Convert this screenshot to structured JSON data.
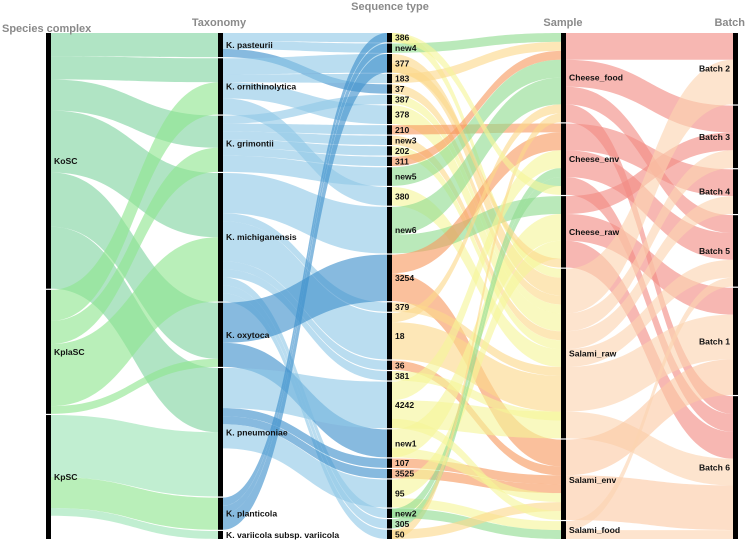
{
  "chart_data": {
    "type": "alluvial",
    "axes": [
      "Species complex",
      "Taxonomy",
      "Sequence type",
      "Sample",
      "Batch"
    ],
    "nodes": [
      [
        {
          "label": "KoSC",
          "value": 33,
          "color": "#7fd3a0"
        },
        {
          "label": "KplaSC",
          "value": 16,
          "color": "#a8eeaa"
        },
        {
          "label": "KpSC",
          "value": 16,
          "color": "#9be3b5"
        }
      ],
      [
        {
          "label": "K. pasteurii",
          "value": 3,
          "color": "#8fc8e6"
        },
        {
          "label": "K. ornithinolytica",
          "value": 7,
          "color": "#a9f5a0"
        },
        {
          "label": "K. grimontii",
          "value": 7,
          "color": "#8fc8e6"
        },
        {
          "label": "K. michiganensis",
          "value": 16,
          "color": "#8fc8e6"
        },
        {
          "label": "K. oxytoca",
          "value": 8,
          "color": "#3d8fcc"
        },
        {
          "label": "K. pneumoniae",
          "value": 16,
          "color": "#8fc8e6"
        },
        {
          "label": "K. planticola",
          "value": 4,
          "color": "#3d8fcc"
        },
        {
          "label": "K. variicola subsp. variicola",
          "value": 1,
          "color": "#8fc8e6"
        }
      ],
      [
        {
          "label": "386",
          "value": 1,
          "color": "#f5f59a"
        },
        {
          "label": "new4",
          "value": 1,
          "color": "#8fdc8f"
        },
        {
          "label": "377",
          "value": 2,
          "color": "#fbd98a"
        },
        {
          "label": "183",
          "value": 1,
          "color": "#fbd98a"
        },
        {
          "label": "37",
          "value": 1,
          "color": "#fbd98a"
        },
        {
          "label": "387",
          "value": 1,
          "color": "#f5f59a"
        },
        {
          "label": "378",
          "value": 2,
          "color": "#f5f59a"
        },
        {
          "label": "210",
          "value": 1,
          "color": "#fbd98a"
        },
        {
          "label": "new3",
          "value": 1,
          "color": "#fbd98a"
        },
        {
          "label": "202",
          "value": 1,
          "color": "#f5f59a"
        },
        {
          "label": "311",
          "value": 1,
          "color": "#fbd98a"
        },
        {
          "label": "new5",
          "value": 2,
          "color": "#8fdc8f"
        },
        {
          "label": "380",
          "value": 2,
          "color": "#f5f59a"
        },
        {
          "label": "new6",
          "value": 5,
          "color": "#8fdc8f"
        },
        {
          "label": "3254",
          "value": 5,
          "color": "#f79a60"
        },
        {
          "label": "379",
          "value": 1,
          "color": "#fbd98a"
        },
        {
          "label": "18",
          "value": 5,
          "color": "#fbd98a"
        },
        {
          "label": "36",
          "value": 1,
          "color": "#f79a60"
        },
        {
          "label": "381",
          "value": 1,
          "color": "#f5f59a"
        },
        {
          "label": "4242",
          "value": 5,
          "color": "#f5f59a"
        },
        {
          "label": "new1",
          "value": 3,
          "color": "#f5f59a"
        },
        {
          "label": "107",
          "value": 1,
          "color": "#f79a60"
        },
        {
          "label": "3525",
          "value": 1,
          "color": "#f79a60"
        },
        {
          "label": "95",
          "value": 3,
          "color": "#f5f59a"
        },
        {
          "label": "new2",
          "value": 1,
          "color": "#8fdc8f"
        },
        {
          "label": "305",
          "value": 1,
          "color": "#8fdc8f"
        },
        {
          "label": "50",
          "value": 1,
          "color": "#fbd98a"
        }
      ],
      [
        {
          "label": "Cheese_food",
          "value": 10,
          "color": "#8fdc8f"
        },
        {
          "label": "Cheese_env",
          "value": 8,
          "color": "#8fdc8f"
        },
        {
          "label": "Cheese_raw",
          "value": 8,
          "color": "#8fdc8f"
        },
        {
          "label": "Salami_raw",
          "value": 19,
          "color": "#f5f59a"
        },
        {
          "label": "Salami_env",
          "value": 9,
          "color": "#f79a60"
        },
        {
          "label": "Salami_food",
          "value": 2,
          "color": "#f5f59a"
        }
      ],
      [
        {
          "label": "Batch 2",
          "value": 8,
          "color": "#f28b82"
        },
        {
          "label": "Batch 3",
          "value": 7,
          "color": "#f28b82"
        },
        {
          "label": "Batch 4",
          "value": 5,
          "color": "#f28b82"
        },
        {
          "label": "Batch 5",
          "value": 8,
          "color": "#f28b82"
        },
        {
          "label": "Batch 1",
          "value": 12,
          "color": "#f28b82"
        },
        {
          "label": "Batch 6",
          "value": 16,
          "color": "#f28b82"
        }
      ]
    ],
    "flows": [
      [
        [
          0,
          0,
          3,
          "#7fd3a0"
        ],
        [
          0,
          1,
          3,
          "#7fd3a0"
        ],
        [
          0,
          2,
          4,
          "#7fd3a0"
        ],
        [
          0,
          3,
          8,
          "#7fd3a0"
        ],
        [
          0,
          4,
          7,
          "#7fd3a0"
        ],
        [
          0,
          5,
          8,
          "#7fd3a0"
        ],
        [
          1,
          1,
          4,
          "#8ee58e"
        ],
        [
          1,
          2,
          3,
          "#8ee58e"
        ],
        [
          1,
          3,
          8,
          "#8ee58e"
        ],
        [
          1,
          4,
          1,
          "#8ee58e"
        ],
        [
          2,
          5,
          8,
          "#9be3b5"
        ],
        [
          2,
          6,
          4,
          "#8ee58e"
        ],
        [
          2,
          7,
          1,
          "#9be3b5"
        ]
      ],
      [
        [
          0,
          0,
          1,
          "#8fc8e6"
        ],
        [
          0,
          1,
          1,
          "#8fc8e6"
        ],
        [
          0,
          4,
          1,
          "#3d8fcc"
        ],
        [
          1,
          2,
          2,
          "#8fc8e6"
        ],
        [
          1,
          3,
          1,
          "#8fc8e6"
        ],
        [
          1,
          6,
          2,
          "#8fc8e6"
        ],
        [
          1,
          12,
          2,
          "#8fc8e6"
        ],
        [
          2,
          5,
          1,
          "#8fc8e6"
        ],
        [
          2,
          7,
          1,
          "#8fc8e6"
        ],
        [
          2,
          8,
          1,
          "#8fc8e6"
        ],
        [
          2,
          9,
          1,
          "#8fc8e6"
        ],
        [
          2,
          10,
          1,
          "#8fc8e6"
        ],
        [
          2,
          11,
          2,
          "#8fc8e6"
        ],
        [
          3,
          13,
          5,
          "#8fc8e6"
        ],
        [
          3,
          15,
          1,
          "#8fc8e6"
        ],
        [
          3,
          16,
          5,
          "#8fc8e6"
        ],
        [
          3,
          17,
          1,
          "#8fc8e6"
        ],
        [
          3,
          18,
          1,
          "#8fc8e6"
        ],
        [
          3,
          24,
          1,
          "#8fc8e6"
        ],
        [
          3,
          25,
          1,
          "#8fc8e6"
        ],
        [
          3,
          26,
          1,
          "#8fc8e6"
        ],
        [
          4,
          14,
          5,
          "#3d8fcc"
        ],
        [
          4,
          20,
          3,
          "#3d8fcc"
        ],
        [
          5,
          19,
          5,
          "#8fc8e6"
        ],
        [
          5,
          21,
          1,
          "#3d8fcc"
        ],
        [
          5,
          22,
          1,
          "#3d8fcc"
        ],
        [
          5,
          23,
          3,
          "#8fc8e6"
        ],
        [
          6,
          0,
          1,
          "#3d8fcc"
        ],
        [
          6,
          1,
          1,
          "#3d8fcc"
        ],
        [
          6,
          2,
          2,
          "#3d8fcc"
        ]
      ],
      [
        [
          0,
          3,
          1,
          "#f5f59a"
        ],
        [
          1,
          0,
          1,
          "#8fdc8f"
        ],
        [
          2,
          3,
          2,
          "#fbd98a"
        ],
        [
          3,
          0,
          1,
          "#fbd98a"
        ],
        [
          4,
          3,
          1,
          "#fbd98a"
        ],
        [
          5,
          3,
          1,
          "#f5f59a"
        ],
        [
          6,
          3,
          2,
          "#f5f59a"
        ],
        [
          7,
          1,
          1,
          "#f79a60"
        ],
        [
          8,
          3,
          1,
          "#fbd98a"
        ],
        [
          9,
          3,
          1,
          "#f5f59a"
        ],
        [
          10,
          0,
          1,
          "#f79a60"
        ],
        [
          11,
          0,
          2,
          "#8fdc8f"
        ],
        [
          12,
          3,
          2,
          "#f5f59a"
        ],
        [
          13,
          0,
          3,
          "#8fdc8f"
        ],
        [
          13,
          2,
          2,
          "#8fdc8f"
        ],
        [
          14,
          1,
          2,
          "#f79a60"
        ],
        [
          14,
          4,
          3,
          "#f79a60"
        ],
        [
          15,
          3,
          1,
          "#fbd98a"
        ],
        [
          16,
          0,
          1,
          "#fbd98a"
        ],
        [
          16,
          3,
          4,
          "#fbd98a"
        ],
        [
          17,
          4,
          1,
          "#f79a60"
        ],
        [
          18,
          3,
          1,
          "#f5f59a"
        ],
        [
          19,
          1,
          2,
          "#f5f59a"
        ],
        [
          19,
          3,
          3,
          "#f5f59a"
        ],
        [
          20,
          2,
          3,
          "#f5f59a"
        ],
        [
          21,
          4,
          1,
          "#f79a60"
        ],
        [
          22,
          4,
          1,
          "#f79a60"
        ],
        [
          23,
          2,
          2,
          "#f5f59a"
        ],
        [
          23,
          5,
          1,
          "#f5f59a"
        ],
        [
          24,
          1,
          1,
          "#8fdc8f"
        ],
        [
          25,
          1,
          1,
          "#8fdc8f"
        ],
        [
          26,
          0,
          1,
          "#fbd98a"
        ],
        [
          20,
          4,
          1,
          "#f5f59a"
        ],
        [
          24,
          5,
          1,
          "#8fdc8f"
        ],
        [
          26,
          4,
          1,
          "#fbd98a"
        ],
        [
          19,
          4,
          1,
          "#f5f59a"
        ],
        [
          0,
          1,
          1,
          "#f5f59a"
        ],
        [
          2,
          2,
          1,
          "#fbd98a"
        ]
      ],
      [
        [
          0,
          0,
          3,
          "#f28b82"
        ],
        [
          0,
          1,
          3,
          "#f28b82"
        ],
        [
          0,
          3,
          2,
          "#f28b82"
        ],
        [
          0,
          5,
          2,
          "#f28b82"
        ],
        [
          1,
          2,
          3,
          "#f28b82"
        ],
        [
          1,
          3,
          3,
          "#f28b82"
        ],
        [
          1,
          5,
          2,
          "#f28b82"
        ],
        [
          2,
          1,
          2,
          "#f28b82"
        ],
        [
          2,
          4,
          3,
          "#f28b82"
        ],
        [
          2,
          5,
          3,
          "#f28b82"
        ],
        [
          3,
          0,
          5,
          "#fbd4b0"
        ],
        [
          3,
          1,
          2,
          "#fbd4b0"
        ],
        [
          3,
          2,
          2,
          "#fbd4b0"
        ],
        [
          3,
          3,
          2,
          "#fbd4b0"
        ],
        [
          3,
          4,
          5,
          "#fbd4b0"
        ],
        [
          3,
          5,
          3,
          "#fbd4b0"
        ],
        [
          4,
          4,
          4,
          "#fbc9a4"
        ],
        [
          4,
          5,
          5,
          "#fbc9a4"
        ],
        [
          5,
          3,
          1,
          "#fbd4b0"
        ],
        [
          5,
          5,
          1,
          "#fbd4b0"
        ]
      ]
    ]
  }
}
